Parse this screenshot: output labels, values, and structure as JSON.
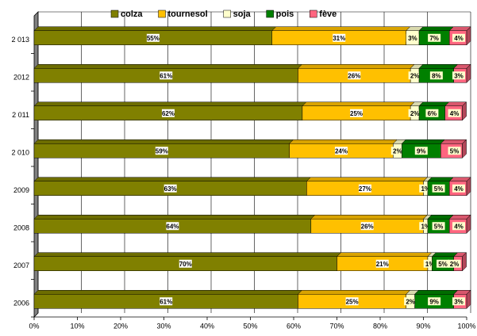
{
  "chart_data": {
    "type": "bar",
    "orientation": "horizontal",
    "stacked": true,
    "categories": [
      "2 013",
      "2012",
      "2 011",
      "2 010",
      "2009",
      "2008",
      "2007",
      "2006"
    ],
    "series": [
      {
        "name": "colza",
        "color": "#808000",
        "values": [
          55,
          61,
          62,
          59,
          63,
          64,
          70,
          61
        ],
        "value_labels": [
          "55%",
          "61%",
          "62%",
          "59%",
          "63%",
          "64%",
          "70%",
          "61%"
        ]
      },
      {
        "name": "tournesol",
        "color": "#ffc000",
        "values": [
          31,
          26,
          25,
          24,
          27,
          26,
          21,
          25
        ],
        "value_labels": [
          "31%",
          "26%",
          "25%",
          "24%",
          "27%",
          "26%",
          "21%",
          "25%"
        ]
      },
      {
        "name": "soja",
        "color": "#ffffcc",
        "values": [
          3,
          2,
          2,
          2,
          1,
          1,
          1,
          2
        ],
        "value_labels": [
          "3%",
          "2%",
          "2%",
          "2%",
          "1%",
          "1%",
          "1%",
          "2%"
        ]
      },
      {
        "name": "pois",
        "color": "#008000",
        "values": [
          7,
          8,
          6,
          9,
          5,
          5,
          5,
          9
        ],
        "value_labels": [
          "7%",
          "8%",
          "6%",
          "9%",
          "5%",
          "5%",
          "5%",
          "9%"
        ]
      },
      {
        "name": "fève",
        "color": "#ff6680",
        "values": [
          4,
          3,
          4,
          5,
          4,
          4,
          2,
          3
        ],
        "value_labels": [
          "4%",
          "3%",
          "4%",
          "5%",
          "4%",
          "4%",
          "2%",
          "3%"
        ]
      }
    ],
    "xlim": [
      0,
      100
    ],
    "xticks": [
      {
        "value": 0,
        "label": "0%"
      },
      {
        "value": 10,
        "label": "10%"
      },
      {
        "value": 20,
        "label": "20%"
      },
      {
        "value": 30,
        "label": "30%"
      },
      {
        "value": 40,
        "label": "40%"
      },
      {
        "value": 50,
        "label": "50%"
      },
      {
        "value": 60,
        "label": "60%"
      },
      {
        "value": 70,
        "label": "70%"
      },
      {
        "value": 80,
        "label": "80%"
      },
      {
        "value": 90,
        "label": "90%"
      },
      {
        "value": 100,
        "label": "100%"
      }
    ],
    "grid": true,
    "legend": "top"
  }
}
